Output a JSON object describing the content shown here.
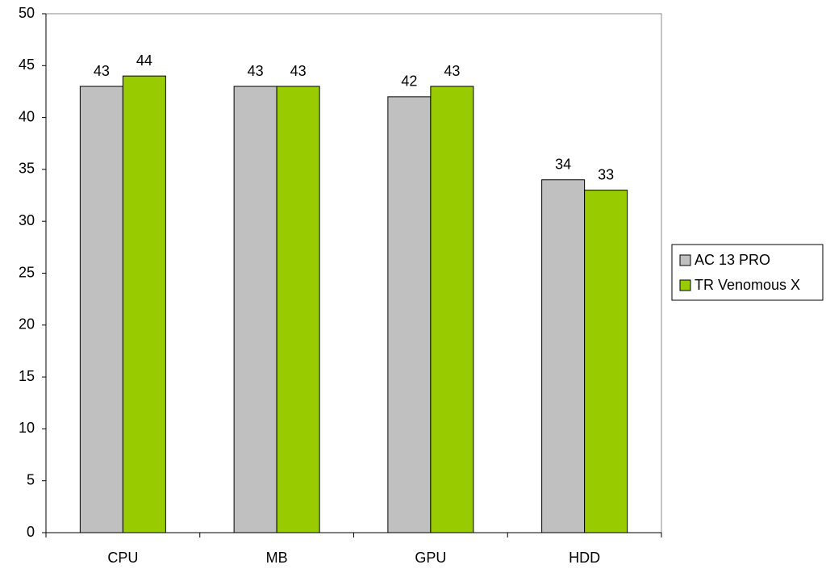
{
  "chart_data": {
    "type": "bar",
    "categories": [
      "CPU",
      "MB",
      "GPU",
      "HDD"
    ],
    "series": [
      {
        "name": "AC 13 PRO",
        "color": "#c0c0c0",
        "values": [
          43,
          43,
          42,
          34
        ]
      },
      {
        "name": "TR Venomous X",
        "color": "#99cc00",
        "values": [
          44,
          43,
          43,
          33
        ]
      }
    ],
    "ylim": [
      0,
      50
    ],
    "yticks": [
      0,
      5,
      10,
      15,
      20,
      25,
      30,
      35,
      40,
      45,
      50
    ],
    "grid": false,
    "legend": "right",
    "data_labels": true
  }
}
